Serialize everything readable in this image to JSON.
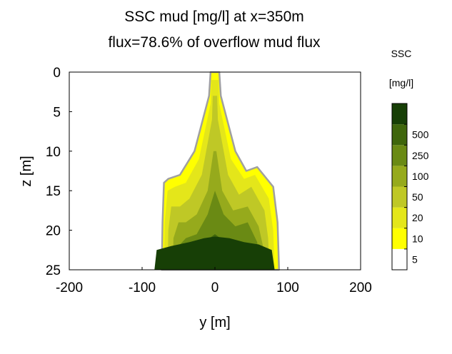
{
  "chart_data": {
    "type": "filled-contour",
    "title": "SSC mud [mg/l] at x=350m",
    "subtitle": "flux=78.6% of overflow mud flux",
    "xlabel": "y [m]",
    "ylabel": "z [m]",
    "xlim": [
      -200,
      200
    ],
    "ylim": [
      0,
      25
    ],
    "y_reversed": true,
    "x_ticks": [
      "-200",
      "-100",
      "0",
      "100",
      "200"
    ],
    "y_ticks": [
      "0",
      "5",
      "10",
      "15",
      "20",
      "25"
    ],
    "x_tick_values": [
      -200,
      -100,
      0,
      100,
      200
    ],
    "y_tick_values": [
      0,
      5,
      10,
      15,
      20,
      25
    ],
    "colorbar": {
      "title_line1": "SSC",
      "title_line2": "[mg/l]",
      "labels": [
        "500",
        "250",
        "100",
        "50",
        "20",
        "10",
        "5"
      ],
      "colors": [
        "#ffffff",
        "#ffff00",
        "#e4e61a",
        "#bfc826",
        "#96aa1c",
        "#6a8a14",
        "#3f660c",
        "#173f06"
      ]
    },
    "contour_levels_mgl": [
      5,
      10,
      20,
      50,
      100,
      250,
      500
    ],
    "plume_outline_color": "#a0a0a0",
    "contours": [
      {
        "level": "5",
        "color": "#ffff00",
        "left": [
          [
            -73,
            25
          ],
          [
            -72,
            19
          ],
          [
            -70,
            14
          ],
          [
            -64,
            13.5
          ],
          [
            -48,
            13
          ],
          [
            -28,
            10
          ],
          [
            -8,
            3
          ],
          [
            -6,
            0
          ]
        ],
        "right": [
          [
            6,
            0
          ],
          [
            8,
            3
          ],
          [
            28,
            10
          ],
          [
            43,
            12.5
          ],
          [
            58,
            12
          ],
          [
            80,
            14.5
          ],
          [
            86,
            19
          ],
          [
            88,
            25
          ]
        ]
      },
      {
        "level": "10",
        "color": "#e4e61a",
        "left": [
          [
            -70,
            25
          ],
          [
            -69,
            19
          ],
          [
            -65,
            15
          ],
          [
            -55,
            14.5
          ],
          [
            -40,
            14
          ],
          [
            -22,
            11
          ],
          [
            -6,
            4
          ],
          [
            -5,
            1
          ]
        ],
        "right": [
          [
            5,
            1
          ],
          [
            6,
            4
          ],
          [
            22,
            11
          ],
          [
            40,
            13.5
          ],
          [
            55,
            13
          ],
          [
            74,
            16
          ],
          [
            80,
            20
          ],
          [
            82,
            25
          ]
        ]
      },
      {
        "level": "20",
        "color": "#bfc826",
        "left": [
          [
            -65,
            25
          ],
          [
            -64,
            20
          ],
          [
            -60,
            17
          ],
          [
            -48,
            17
          ],
          [
            -35,
            16
          ],
          [
            -18,
            13
          ],
          [
            -4,
            6
          ],
          [
            -3,
            3
          ]
        ],
        "right": [
          [
            3,
            3
          ],
          [
            4,
            6
          ],
          [
            18,
            13
          ],
          [
            33,
            15.5
          ],
          [
            50,
            14.5
          ],
          [
            68,
            17.5
          ],
          [
            73,
            21
          ],
          [
            75,
            25
          ]
        ]
      },
      {
        "level": "50",
        "color": "#96aa1c",
        "left": [
          [
            -58,
            25
          ],
          [
            -57,
            21
          ],
          [
            -50,
            19
          ],
          [
            -40,
            19
          ],
          [
            -25,
            18
          ],
          [
            -10,
            15
          ],
          [
            -2,
            10
          ]
        ],
        "right": [
          [
            2,
            10
          ],
          [
            10,
            15
          ],
          [
            25,
            17.5
          ],
          [
            45,
            17
          ],
          [
            60,
            19.5
          ],
          [
            66,
            22
          ],
          [
            68,
            25
          ]
        ]
      },
      {
        "level": "100",
        "color": "#6a8a14",
        "left": [
          [
            -52,
            25
          ],
          [
            -50,
            22
          ],
          [
            -40,
            21
          ],
          [
            -25,
            20.5
          ],
          [
            -10,
            18
          ],
          [
            0,
            15
          ]
        ],
        "right": [
          [
            0,
            15
          ],
          [
            12,
            18
          ],
          [
            28,
            19.5
          ],
          [
            45,
            19
          ],
          [
            58,
            21.5
          ],
          [
            62,
            25
          ]
        ]
      },
      {
        "level": "250",
        "color": "#3f660c",
        "left": [
          [
            -45,
            25
          ],
          [
            -42,
            23
          ],
          [
            -30,
            22.5
          ],
          [
            -15,
            21.5
          ],
          [
            0,
            20.5
          ]
        ],
        "right": [
          [
            0,
            20.5
          ],
          [
            15,
            21.5
          ],
          [
            30,
            22.5
          ],
          [
            45,
            22.5
          ],
          [
            55,
            25
          ]
        ]
      },
      {
        "level": "500",
        "color": "#173f06",
        "left": [
          [
            -83,
            25
          ],
          [
            -80,
            22.5
          ],
          [
            -60,
            22
          ],
          [
            -35,
            21.5
          ],
          [
            -15,
            21
          ],
          [
            0,
            20.8
          ]
        ],
        "right": [
          [
            0,
            20.8
          ],
          [
            20,
            21
          ],
          [
            40,
            21.5
          ],
          [
            60,
            21.8
          ],
          [
            78,
            22.5
          ],
          [
            82,
            25
          ]
        ]
      }
    ]
  }
}
